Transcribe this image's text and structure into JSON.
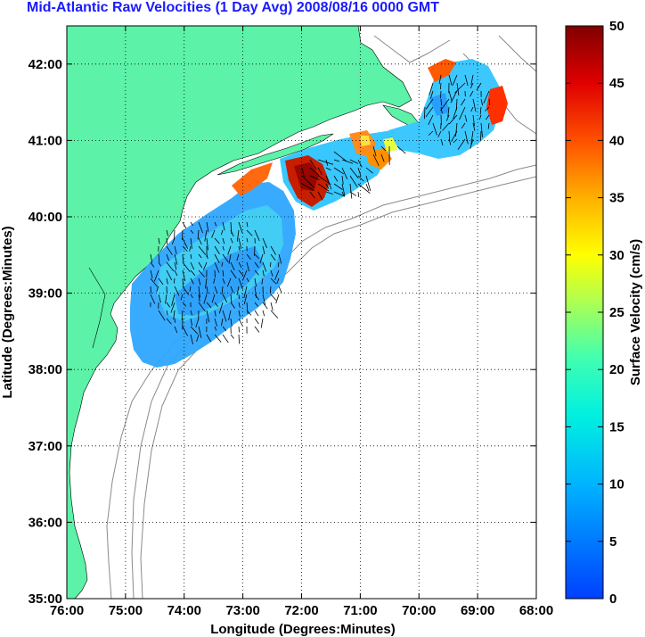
{
  "title": "Mid-Atlantic Raw Velocities (1 Day Avg) 2008/08/16 0000 GMT",
  "map": {
    "xlabel": "Longitude (Degrees:Minutes)",
    "ylabel": "Latitude (Degrees:Minutes)",
    "xticks": [
      "76:00",
      "75:00",
      "74:00",
      "73:00",
      "72:00",
      "71:00",
      "70:00",
      "69:00",
      "68:00"
    ],
    "yticks": [
      "42:00",
      "41:00",
      "40:00",
      "39:00",
      "38:00",
      "37:00",
      "36:00",
      "35:00"
    ],
    "lon_range": [
      -76,
      -68
    ],
    "lat_range": [
      35,
      42.5
    ],
    "land_color": "#5cf2a8",
    "grid": "dotted"
  },
  "colorbar": {
    "label": "Surface Velocity (cm/s)",
    "ticks": [
      "50",
      "45",
      "40",
      "35",
      "30",
      "25",
      "20",
      "15",
      "10",
      "5",
      "0"
    ],
    "min": 0,
    "max": 50,
    "colormap": "jet"
  }
}
